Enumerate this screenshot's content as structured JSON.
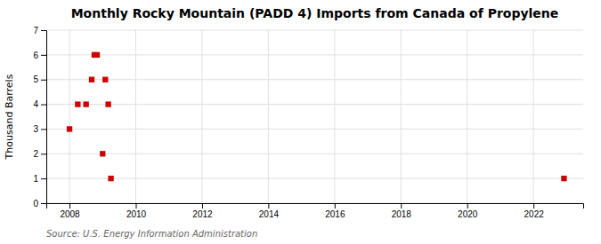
{
  "chart_data": {
    "type": "scatter",
    "title": "Monthly Rocky Mountain (PADD 4) Imports from Canada of Propylene",
    "ylabel": "Thousand Barrels",
    "source": "Source: U.S. Energy Information Administration",
    "x": [
      2008.0,
      2008.25,
      2008.5,
      2008.67,
      2008.75,
      2008.83,
      2009.0,
      2009.08,
      2009.17,
      2009.25,
      2022.92
    ],
    "values": [
      3,
      4,
      4,
      5,
      6,
      6,
      2,
      5,
      4,
      1,
      1
    ],
    "color": "#cc0000",
    "marker": "square",
    "xlim": [
      2007.3,
      2023.5
    ],
    "ylim": [
      0,
      7
    ],
    "xticks": [
      2008,
      2010,
      2012,
      2014,
      2016,
      2018,
      2020,
      2022
    ],
    "yticks": [
      0,
      1,
      2,
      3,
      4,
      5,
      6,
      7
    ],
    "grid": true
  }
}
